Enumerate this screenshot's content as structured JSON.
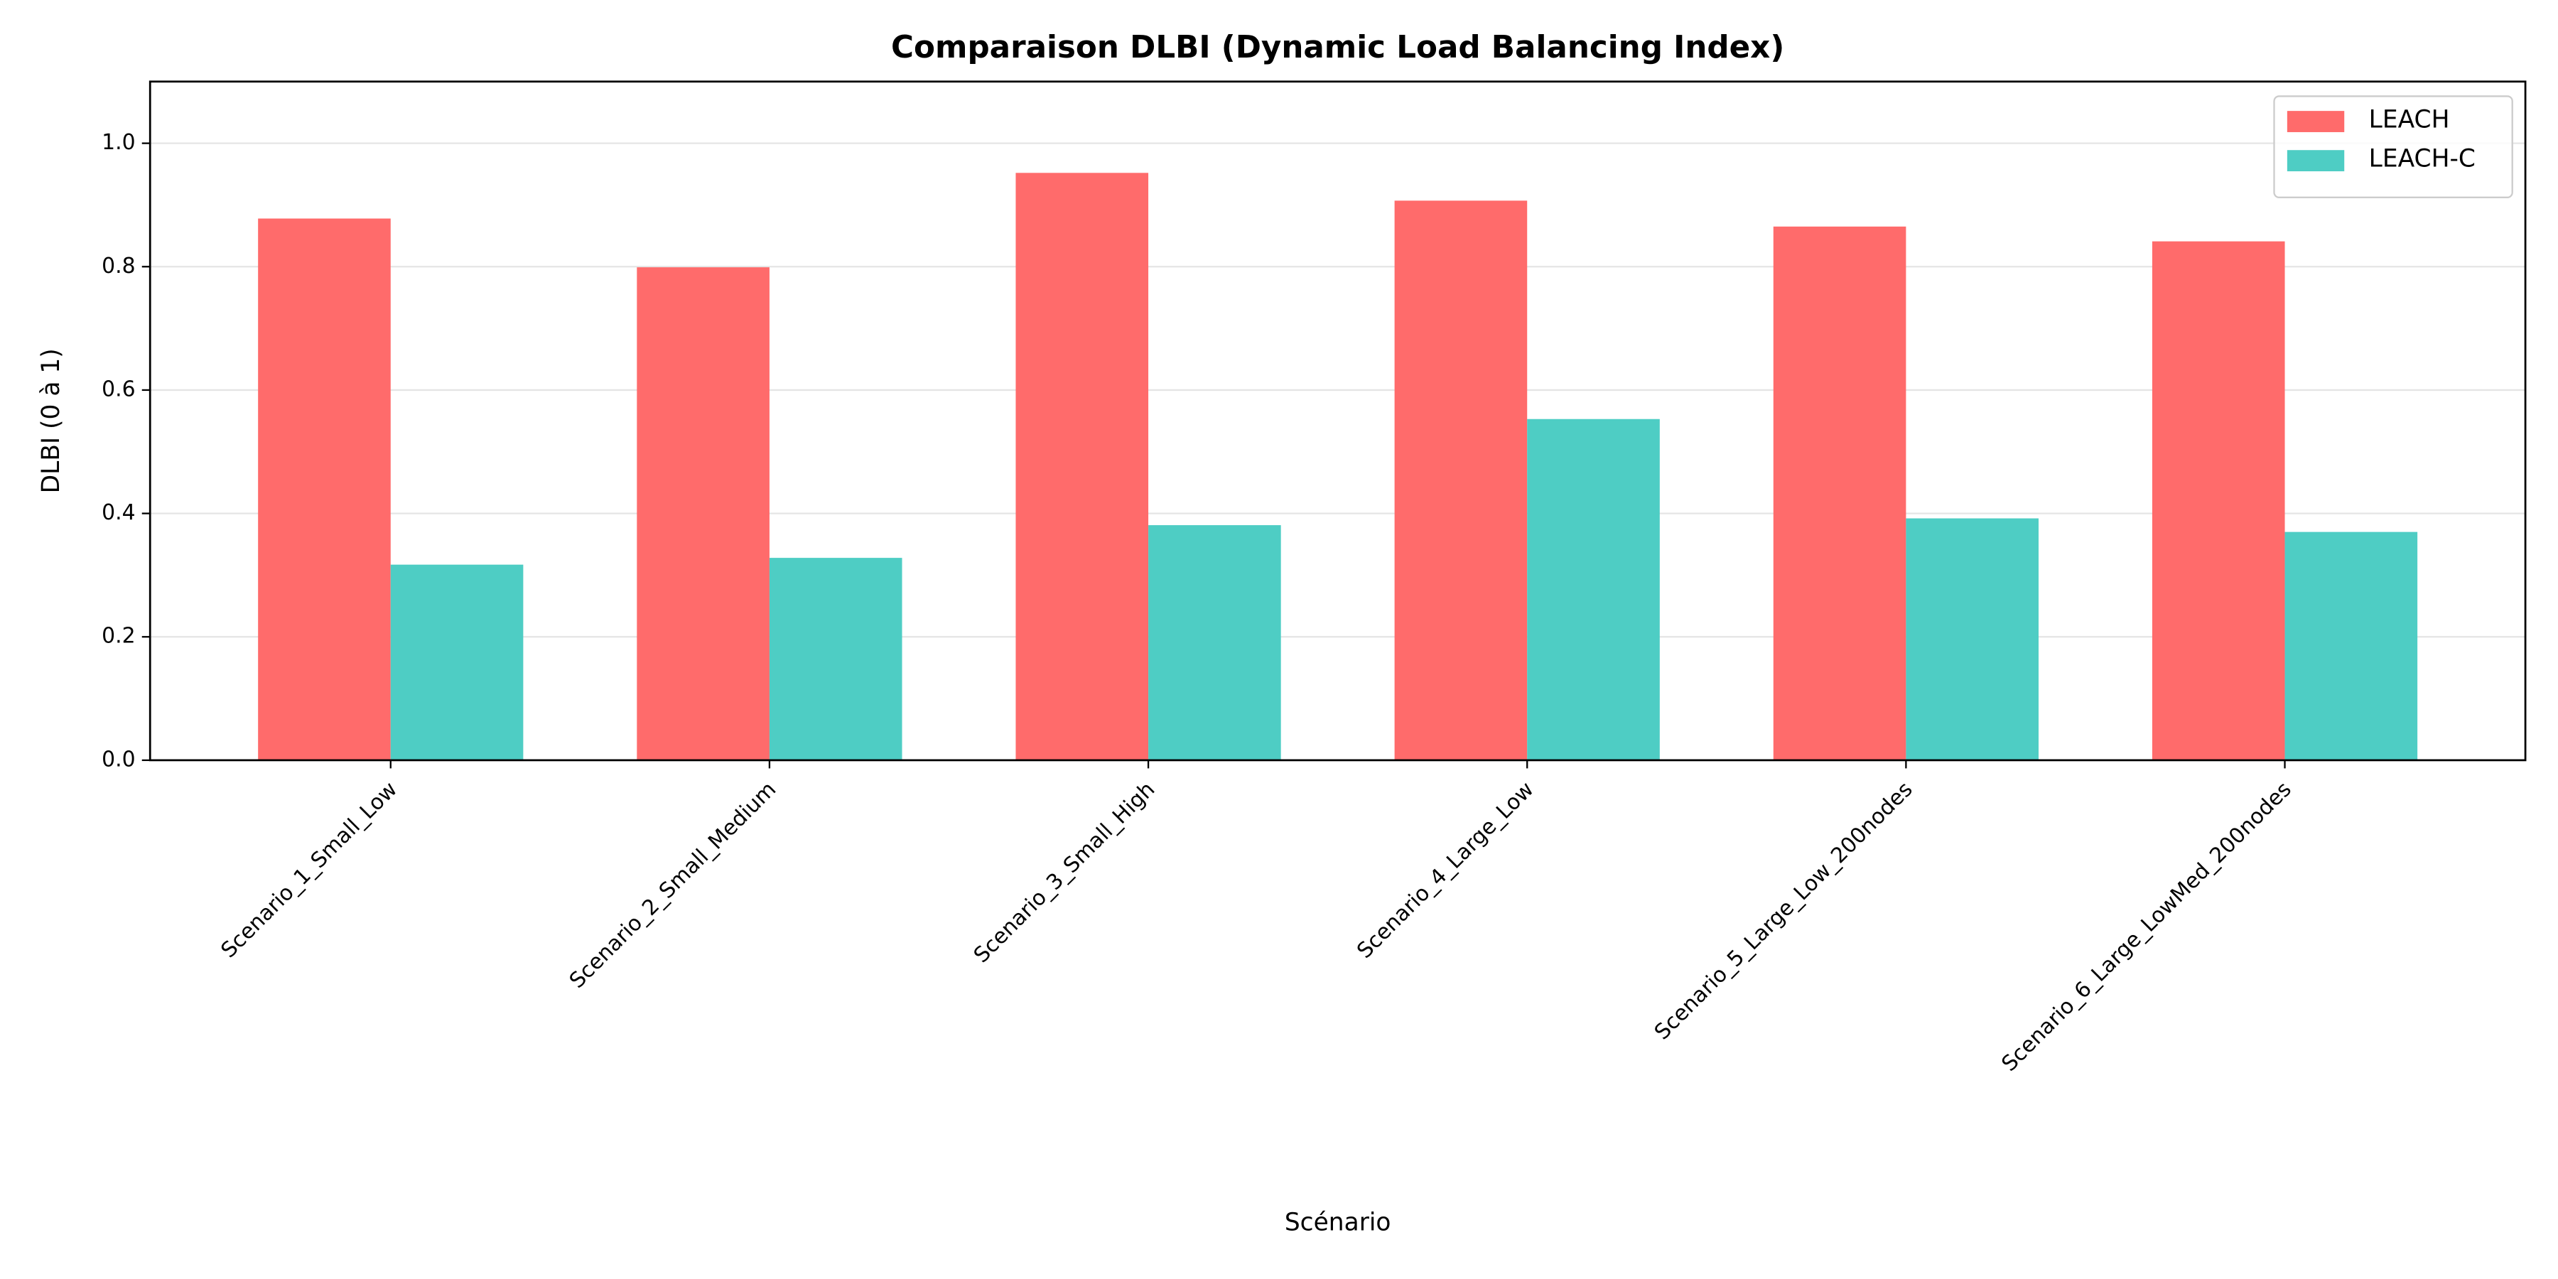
{
  "chart_data": {
    "type": "bar",
    "title": "Comparaison DLBI (Dynamic Load Balancing Index)",
    "x_label": "Scénario",
    "y_label": "DLBI (0 à 1)",
    "categories": [
      "Scenario_1_Small_Low",
      "Scenario_2_Small_Medium",
      "Scenario_3_Small_High",
      "Scenario_4_Large_Low",
      "Scenario_5_Large_Low_200nodes",
      "Scenario_6_Large_LowMed_200nodes"
    ],
    "series": [
      {
        "name": "LEACH",
        "color": "#ff6b6b",
        "values": [
          0.878,
          0.799,
          0.952,
          0.907,
          0.865,
          0.841
        ]
      },
      {
        "name": "LEACH-C",
        "color": "#4ecdc4",
        "values": [
          0.317,
          0.328,
          0.381,
          0.553,
          0.392,
          0.37
        ]
      }
    ],
    "ylim": [
      0,
      1.1
    ],
    "yticks": [
      {
        "value": 0,
        "label": "0.0"
      },
      0.2,
      0.4,
      0.6,
      0.8,
      {
        "value": 1,
        "label": "1.0"
      }
    ],
    "grid": true,
    "legend": "upper right"
  }
}
